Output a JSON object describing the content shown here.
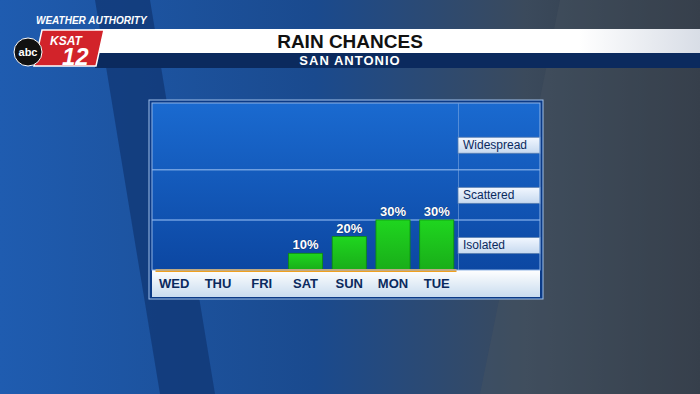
{
  "header": {
    "brand": "WEATHER AUTHORITY",
    "station": "KSAT",
    "channel": "12",
    "network": "abc"
  },
  "chart_data": {
    "type": "bar",
    "title": "RAIN CHANCES",
    "subtitle": "SAN ANTONIO",
    "categories": [
      "WED",
      "THU",
      "FRI",
      "SAT",
      "SUN",
      "MON",
      "TUE"
    ],
    "values": [
      0,
      0,
      0,
      10,
      20,
      30,
      30
    ],
    "value_labels": [
      null,
      null,
      null,
      "10%",
      "20%",
      "30%",
      "30%"
    ],
    "color": "#1fd61f",
    "ylim": [
      0,
      100
    ],
    "yticks": [
      {
        "value": 15,
        "label": "Isolated"
      },
      {
        "value": 45,
        "label": "Scattered"
      },
      {
        "value": 75,
        "label": "Widespread"
      }
    ],
    "grid": true,
    "data_labels": true
  }
}
